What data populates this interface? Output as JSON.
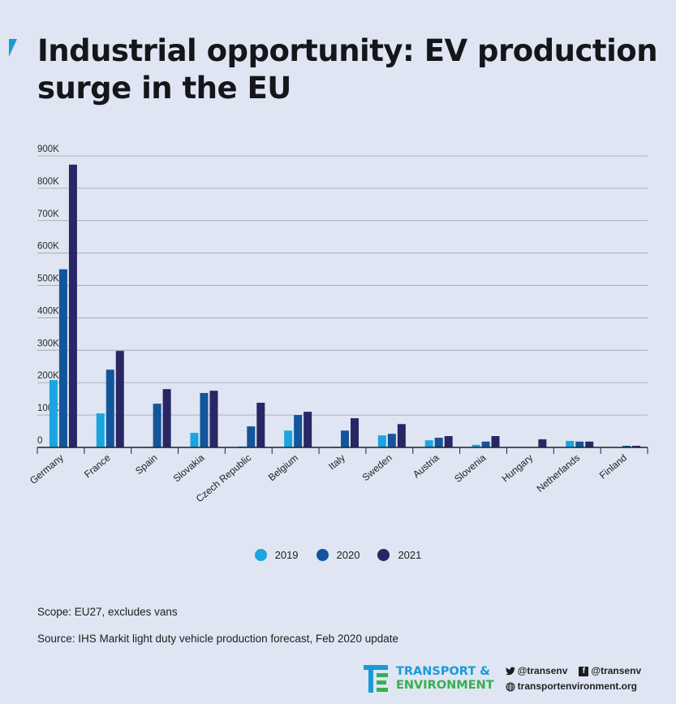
{
  "title": "Industrial opportunity: EV production surge in the EU",
  "colors": {
    "accent": "#1a9ad6",
    "series_2019": "#1aa5e0",
    "series_2020": "#13559a",
    "series_2021": "#282664",
    "gridline": "#9aa3b5",
    "background": "#dfe5f2"
  },
  "chart_data": {
    "type": "bar",
    "title": "Industrial opportunity: EV production surge in the EU",
    "xlabel": "",
    "ylabel": "",
    "ylim": [
      0,
      900000
    ],
    "yticks": [
      0,
      100000,
      200000,
      300000,
      400000,
      500000,
      600000,
      700000,
      800000,
      900000
    ],
    "ytick_labels": [
      "0",
      "100K",
      "200K",
      "300K",
      "400K",
      "500K",
      "600K",
      "700K",
      "800K",
      "900K"
    ],
    "grid": true,
    "legend_position": "bottom-center",
    "categories": [
      "Germany",
      "France",
      "Spain",
      "Slovakia",
      "Czech Republic",
      "Belgium",
      "Italy",
      "Sweden",
      "Austria",
      "Slovenia",
      "Hungary",
      "Netherlands",
      "Finland"
    ],
    "series": [
      {
        "name": "2019",
        "values": [
          208000,
          105000,
          2000,
          45000,
          3000,
          52000,
          2000,
          37000,
          22000,
          8000,
          0,
          20000,
          0
        ]
      },
      {
        "name": "2020",
        "values": [
          550000,
          240000,
          135000,
          168000,
          65000,
          100000,
          52000,
          42000,
          30000,
          18000,
          0,
          18000,
          5000
        ]
      },
      {
        "name": "2021",
        "values": [
          873000,
          298000,
          180000,
          175000,
          138000,
          110000,
          90000,
          72000,
          35000,
          35000,
          25000,
          18000,
          5000
        ]
      }
    ]
  },
  "notes": {
    "scope": "Scope: EU27, excludes vans",
    "source": "Source:  IHS Markit light duty vehicle production forecast, Feb 2020 update"
  },
  "footer": {
    "logo_line1": "TRANSPORT &",
    "logo_line2": "ENVIRONMENT",
    "twitter_icon": "twitter-bird-icon",
    "twitter_handle": "@transenv",
    "facebook_icon": "facebook-f-icon",
    "facebook_handle": "@transenv",
    "web_icon": "globe-icon",
    "website": "transportenvironment.org"
  }
}
